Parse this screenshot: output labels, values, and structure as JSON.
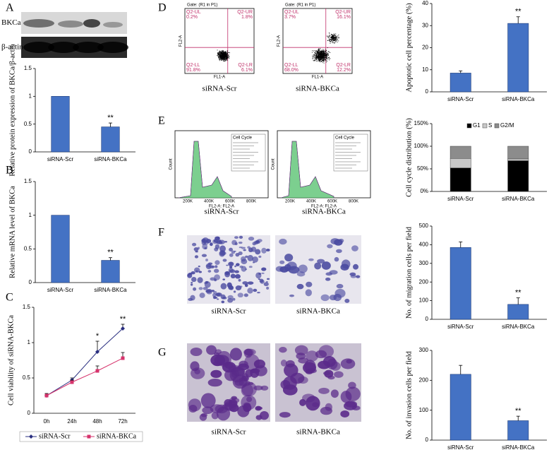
{
  "panel_labels": [
    "A",
    "B",
    "C",
    "D",
    "E",
    "F",
    "G"
  ],
  "blot": {
    "labels": [
      "BKCa",
      "β-actin"
    ]
  },
  "flow": {
    "gate": "Gate: (R1 in P1)",
    "x_label": "FL1-A",
    "y_label": "FL2-A",
    "plots": [
      {
        "caption": "siRNA-Scr",
        "quadrants": [
          {
            "name": "Q2-UL",
            "value": "0.2%"
          },
          {
            "name": "Q2-UR",
            "value": "1.8%"
          },
          {
            "name": "Q2-LL",
            "value": "91.8%"
          },
          {
            "name": "Q2-LR",
            "value": "6.1%"
          }
        ]
      },
      {
        "caption": "siRNA-BKCa",
        "quadrants": [
          {
            "name": "Q2-UL",
            "value": "3.7%"
          },
          {
            "name": "Q2-UR",
            "value": "16.1%"
          },
          {
            "name": "Q2-LL",
            "value": "68.0%"
          },
          {
            "name": "Q2-LR",
            "value": "12.2%"
          }
        ]
      }
    ]
  },
  "cell_cycle_plots": {
    "title": "Cell Cycle",
    "x_label": "FL2-A: FL2-A",
    "y_label": "Count",
    "x_ticks": [
      "200K",
      "400K",
      "600K",
      "800K"
    ],
    "captions": [
      "siRNA-Scr",
      "siRNA-BKCa"
    ]
  },
  "migration_images": {
    "captions": [
      "siRNA-Scr",
      "siRNA-BKCa"
    ]
  },
  "invasion_images": {
    "captions": [
      "siRNA-Scr",
      "siRNA-BKCa"
    ]
  },
  "chart_data": [
    {
      "type": "bar",
      "y_label": "Relative protein expression of BKCa/β-actin",
      "categories": [
        "siRNA-Scr",
        "siRNA-BKCa"
      ],
      "values": [
        1,
        0.45
      ],
      "errors": [
        0,
        0.07
      ],
      "significance": [
        null,
        "**"
      ],
      "color": "#4472c4",
      "ylim": [
        0,
        1.5
      ],
      "yticks": [
        0,
        0.5,
        1,
        1.5
      ]
    },
    {
      "type": "bar",
      "y_label": "Relative mRNA level of BKCa",
      "categories": [
        "siRNA-Scr",
        "siRNA-BKCa"
      ],
      "values": [
        1,
        0.33
      ],
      "errors": [
        0,
        0.04
      ],
      "significance": [
        null,
        "**"
      ],
      "color": "#4472c4",
      "ylim": [
        0,
        1.5
      ],
      "yticks": [
        0,
        0.5,
        1,
        1.5
      ]
    },
    {
      "type": "line",
      "y_label": "Cell viability of siRNA-BKCa",
      "categories": [
        "0h",
        "24h",
        "48h",
        "72h"
      ],
      "series": [
        {
          "name": "siRNA-Scr",
          "color": "#2a2f80",
          "marker": "diamond",
          "values": [
            0.25,
            0.47,
            0.87,
            1.2
          ],
          "errors": [
            0.02,
            0.03,
            0.15,
            0.06
          ],
          "significance": [
            null,
            null,
            "*",
            "**"
          ]
        },
        {
          "name": "siRNA-BKCa",
          "color": "#d6336c",
          "marker": "square",
          "values": [
            0.25,
            0.44,
            0.6,
            0.78
          ],
          "errors": [
            0.03,
            0.03,
            0.07,
            0.08
          ]
        }
      ],
      "ylim": [
        0,
        1.5
      ],
      "yticks": [
        0,
        0.5,
        1,
        1.5
      ],
      "legend": "bottom"
    },
    {
      "type": "bar",
      "y_label": "Apoptotic cell percentage (%)",
      "categories": [
        "siRNA-Scr",
        "siRNA-BKCa"
      ],
      "values": [
        8.5,
        31
      ],
      "errors": [
        1,
        3
      ],
      "significance": [
        null,
        "**"
      ],
      "color": "#4472c4",
      "ylim": [
        0,
        40
      ],
      "yticks": [
        0,
        10,
        20,
        30,
        40
      ]
    },
    {
      "type": "stacked-bar",
      "y_label": "Cell cycle distribution (%)",
      "categories": [
        "siRNA-Scr",
        "siRNA-BKCa"
      ],
      "series": [
        {
          "name": "G1",
          "color": "#000000",
          "values": [
            52,
            68
          ]
        },
        {
          "name": "S",
          "color": "#c8c8c8",
          "values": [
            21,
            4
          ]
        },
        {
          "name": "G2/M",
          "color": "#8c8c8c",
          "values": [
            27,
            28
          ]
        }
      ],
      "ylim": [
        0,
        150
      ],
      "yticks": [
        {
          "value": 0,
          "label": "0%"
        },
        {
          "value": 50,
          "label": "50%"
        },
        {
          "value": 100,
          "label": "100%"
        },
        {
          "value": 150,
          "label": "150%"
        }
      ],
      "legend": "top"
    },
    {
      "type": "bar",
      "y_label": "No. of migration cells per field",
      "categories": [
        "siRNA-Scr",
        "siRNA-BKCa"
      ],
      "values": [
        385,
        80
      ],
      "errors": [
        30,
        35
      ],
      "significance": [
        null,
        "**"
      ],
      "color": "#4472c4",
      "ylim": [
        0,
        500
      ],
      "yticks": [
        0,
        100,
        200,
        300,
        400,
        500
      ]
    },
    {
      "type": "bar",
      "y_label": "No. of invasion cells per field",
      "categories": [
        "siRNA-Scr",
        "siRNA-BKCa"
      ],
      "values": [
        220,
        65
      ],
      "errors": [
        30,
        15
      ],
      "significance": [
        null,
        "**"
      ],
      "color": "#4472c4",
      "ylim": [
        0,
        300
      ],
      "yticks": [
        0,
        100,
        200,
        300
      ]
    }
  ]
}
